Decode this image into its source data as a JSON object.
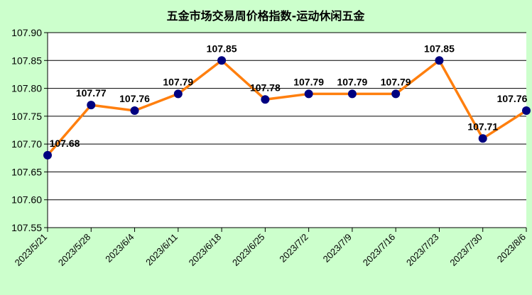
{
  "chart_data": {
    "type": "line",
    "title": "五金市场交易周价格指数-运动休闲五金",
    "categories": [
      "2023/5/21",
      "2023/5/28",
      "2023/6/4",
      "2023/6/11",
      "2023/6/18",
      "2023/6/25",
      "2023/7/2",
      "2023/7/9",
      "2023/7/16",
      "2023/7/23",
      "2023/7/30",
      "2023/8/6"
    ],
    "series": [
      {
        "values": [
          107.68,
          107.77,
          107.76,
          107.79,
          107.85,
          107.78,
          107.79,
          107.79,
          107.79,
          107.85,
          107.71,
          107.76
        ]
      }
    ],
    "data_labels": [
      "107.68",
      "107.77",
      "107.76",
      "107.79",
      "107.85",
      "107.78",
      "107.79",
      "107.79",
      "107.79",
      "107.85",
      "107.71",
      "107.76"
    ],
    "y_ticks": [
      "107.55",
      "107.60",
      "107.65",
      "107.70",
      "107.75",
      "107.80",
      "107.85",
      "107.90"
    ],
    "ylim": [
      107.55,
      107.9
    ],
    "xlabel": "",
    "ylabel": "",
    "grid": true,
    "legend": "none",
    "colors": {
      "background": "#ccffcc",
      "plot_area": "#ffffff",
      "line": "#ff7f0e",
      "marker": "#000080",
      "grid": "#000000"
    }
  }
}
